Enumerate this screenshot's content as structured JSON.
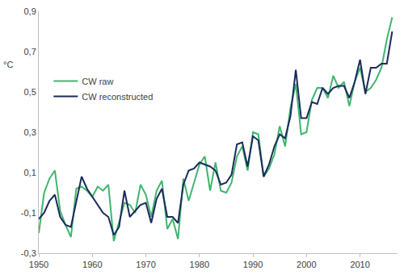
{
  "chart_data": {
    "type": "line",
    "ylabel": "°C",
    "x": [
      1950,
      1951,
      1952,
      1953,
      1954,
      1955,
      1956,
      1957,
      1958,
      1959,
      1960,
      1961,
      1962,
      1963,
      1964,
      1965,
      1966,
      1967,
      1968,
      1969,
      1970,
      1971,
      1972,
      1973,
      1974,
      1975,
      1976,
      1977,
      1978,
      1979,
      1980,
      1981,
      1982,
      1983,
      1984,
      1985,
      1986,
      1987,
      1988,
      1989,
      1990,
      1991,
      1992,
      1993,
      1994,
      1995,
      1996,
      1997,
      1998,
      1999,
      2000,
      2001,
      2002,
      2003,
      2004,
      2005,
      2006,
      2007,
      2008,
      2009,
      2010,
      2011,
      2012,
      2013,
      2014,
      2015,
      2016
    ],
    "series": [
      {
        "name": "CW raw",
        "color": "#3fb56e",
        "values": [
          -0.2,
          0.0,
          0.07,
          0.11,
          -0.09,
          -0.16,
          -0.22,
          0.02,
          0.03,
          0.01,
          -0.02,
          0.03,
          0.01,
          0.04,
          -0.24,
          -0.15,
          -0.05,
          -0.06,
          -0.1,
          0.04,
          -0.01,
          -0.12,
          0.01,
          0.06,
          -0.18,
          -0.13,
          -0.23,
          0.07,
          -0.04,
          0.05,
          0.14,
          0.18,
          0.01,
          0.15,
          0.01,
          0.0,
          0.05,
          0.18,
          0.23,
          0.11,
          0.3,
          0.29,
          0.08,
          0.12,
          0.19,
          0.33,
          0.23,
          0.42,
          0.54,
          0.29,
          0.3,
          0.46,
          0.52,
          0.52,
          0.47,
          0.58,
          0.52,
          0.55,
          0.43,
          0.55,
          0.62,
          0.5,
          0.52,
          0.56,
          0.62,
          0.76,
          0.87
        ]
      },
      {
        "name": "CW reconstructed",
        "color": "#1c2a5c",
        "values": [
          -0.13,
          -0.1,
          -0.04,
          -0.01,
          -0.12,
          -0.16,
          -0.17,
          -0.04,
          0.08,
          0.02,
          -0.02,
          -0.06,
          -0.1,
          -0.12,
          -0.21,
          -0.17,
          0.01,
          -0.12,
          -0.09,
          -0.06,
          -0.05,
          -0.15,
          -0.03,
          0.02,
          -0.12,
          -0.12,
          -0.15,
          0.04,
          0.11,
          0.12,
          0.15,
          0.14,
          0.13,
          0.11,
          0.04,
          0.05,
          0.09,
          0.24,
          0.25,
          0.13,
          0.28,
          0.26,
          0.08,
          0.14,
          0.23,
          0.29,
          0.27,
          0.38,
          0.61,
          0.37,
          0.37,
          0.45,
          0.44,
          0.52,
          0.49,
          0.52,
          0.53,
          0.53,
          0.47,
          0.55,
          0.66,
          0.49,
          0.62,
          0.62,
          0.64,
          0.64,
          0.8
        ]
      }
    ],
    "xlim": [
      1950,
      2017
    ],
    "xticks": [
      1950,
      1960,
      1970,
      1980,
      1990,
      2000,
      2010
    ],
    "ylim": [
      -0.3,
      0.9
    ],
    "yticks": [
      {
        "value": -0.3,
        "label": "-0,3"
      },
      {
        "value": -0.1,
        "label": "-0,1"
      },
      {
        "value": 0.1,
        "label": "0,1"
      },
      {
        "value": 0.3,
        "label": "0,3"
      },
      {
        "value": 0.5,
        "label": "0,5"
      },
      {
        "value": 0.7,
        "label": "0,7"
      },
      {
        "value": 0.9,
        "label": "0,9"
      }
    ],
    "grid": false,
    "legend": "upper left"
  }
}
